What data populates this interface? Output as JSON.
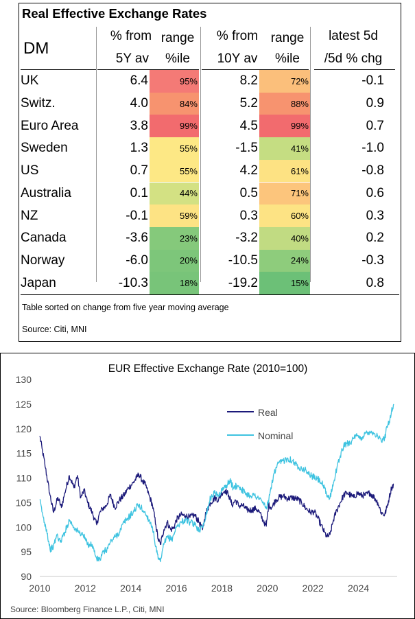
{
  "table": {
    "title": "Real Effective Exchange Rates",
    "dm_label": "DM",
    "headers": {
      "c5y_l1": "% from",
      "c5y_l2": "5Y av",
      "r5_l1": "range",
      "r5_l2": "%ile",
      "c10y_l1": "% from",
      "c10y_l2": "10Y av",
      "r10_l1": "range",
      "r10_l2": "%ile",
      "chg_l1": "latest 5d",
      "chg_l2": "/5d % chg"
    },
    "rows": [
      {
        "name": "UK",
        "from5y": "6.4",
        "range5": "95%",
        "c5": "#f47a76",
        "from10y": "8.2",
        "range10": "72%",
        "c10": "#fbbf7b",
        "chg": "-0.1"
      },
      {
        "name": "Switz.",
        "from5y": "4.0",
        "range5": "84%",
        "c5": "#f7936f",
        "from10y": "5.2",
        "range10": "88%",
        "c10": "#f7936f",
        "chg": "0.9"
      },
      {
        "name": "Euro Area",
        "from5y": "3.8",
        "range5": "99%",
        "c5": "#f26b6e",
        "from10y": "4.5",
        "range10": "99%",
        "c10": "#f26b6e",
        "chg": "0.7"
      },
      {
        "name": "Sweden",
        "from5y": "1.3",
        "range5": "55%",
        "c5": "#fde885",
        "from10y": "-1.5",
        "range10": "41%",
        "c10": "#c5dd82",
        "chg": "-1.0"
      },
      {
        "name": "US",
        "from5y": "0.7",
        "range5": "55%",
        "c5": "#fde885",
        "from10y": "4.2",
        "range10": "61%",
        "c10": "#fde283",
        "chg": "-0.8"
      },
      {
        "name": "Australia",
        "from5y": "0.1",
        "range5": "44%",
        "c5": "#d3e183",
        "from10y": "0.5",
        "range10": "71%",
        "c10": "#fcc57c",
        "chg": "0.6"
      },
      {
        "name": "NZ",
        "from5y": "-0.1",
        "range5": "59%",
        "c5": "#fde384",
        "from10y": "0.3",
        "range10": "60%",
        "c10": "#fde384",
        "chg": "0.3"
      },
      {
        "name": "Canada",
        "from5y": "-3.6",
        "range5": "23%",
        "c5": "#85c97b",
        "from10y": "-3.2",
        "range10": "40%",
        "c10": "#c1db82",
        "chg": "0.2"
      },
      {
        "name": "Norway",
        "from5y": "-6.0",
        "range5": "20%",
        "c5": "#7dc67a",
        "from10y": "-10.5",
        "range10": "24%",
        "c10": "#8ecc7c",
        "chg": "-0.3"
      },
      {
        "name": "Japan",
        "from5y": "-10.3",
        "range5": "18%",
        "c5": "#78c479",
        "from10y": "-19.2",
        "range10": "15%",
        "c10": "#6cc077",
        "chg": "0.8"
      }
    ],
    "note": "Table sorted on change from five year moving average",
    "source": "Source: Citi, MNI"
  },
  "chart_data": {
    "type": "line",
    "title": "EUR Effective Exchange Rate (2010=100)",
    "xlabel": "",
    "ylabel": "",
    "xlim": [
      2010,
      2025.7
    ],
    "ylim": [
      90,
      130
    ],
    "yticks": [
      90,
      95,
      100,
      105,
      110,
      115,
      120,
      125,
      130
    ],
    "xticks": [
      2010,
      2012,
      2014,
      2016,
      2018,
      2020,
      2022,
      2024
    ],
    "grid": false,
    "legend_position": "upper-center-right",
    "series": [
      {
        "name": "Real",
        "color": "#1c1a7a",
        "points": [
          [
            2010.0,
            118.5
          ],
          [
            2010.1,
            116.0
          ],
          [
            2010.25,
            112.0
          ],
          [
            2010.45,
            106.5
          ],
          [
            2010.6,
            103.0
          ],
          [
            2010.8,
            106.0
          ],
          [
            2010.95,
            104.0
          ],
          [
            2011.1,
            107.0
          ],
          [
            2011.3,
            110.5
          ],
          [
            2011.5,
            108.0
          ],
          [
            2011.65,
            110.5
          ],
          [
            2011.8,
            106.0
          ],
          [
            2011.95,
            107.5
          ],
          [
            2012.1,
            105.0
          ],
          [
            2012.3,
            103.0
          ],
          [
            2012.5,
            100.5
          ],
          [
            2012.6,
            102.5
          ],
          [
            2012.75,
            103.8
          ],
          [
            2012.9,
            104.2
          ],
          [
            2013.1,
            106.5
          ],
          [
            2013.3,
            104.0
          ],
          [
            2013.5,
            105.5
          ],
          [
            2013.7,
            106.5
          ],
          [
            2013.9,
            108.0
          ],
          [
            2014.1,
            109.0
          ],
          [
            2014.25,
            110.0
          ],
          [
            2014.35,
            110.8
          ],
          [
            2014.5,
            109.5
          ],
          [
            2014.65,
            108.5
          ],
          [
            2014.8,
            106.5
          ],
          [
            2014.95,
            104.5
          ],
          [
            2015.1,
            100.5
          ],
          [
            2015.2,
            97.5
          ],
          [
            2015.3,
            96.5
          ],
          [
            2015.45,
            99.5
          ],
          [
            2015.6,
            101.0
          ],
          [
            2015.75,
            99.5
          ],
          [
            2015.9,
            100.0
          ],
          [
            2016.0,
            101.5
          ],
          [
            2016.2,
            102.5
          ],
          [
            2016.4,
            102.3
          ],
          [
            2016.6,
            102.0
          ],
          [
            2016.8,
            102.5
          ],
          [
            2017.0,
            101.0
          ],
          [
            2017.15,
            99.5
          ],
          [
            2017.3,
            103.0
          ],
          [
            2017.5,
            105.0
          ],
          [
            2017.7,
            106.0
          ],
          [
            2017.85,
            105.5
          ],
          [
            2018.0,
            107.0
          ],
          [
            2018.15,
            107.5
          ],
          [
            2018.3,
            106.5
          ],
          [
            2018.45,
            104.5
          ],
          [
            2018.6,
            105.5
          ],
          [
            2018.75,
            104.3
          ],
          [
            2018.9,
            104.5
          ],
          [
            2019.1,
            103.5
          ],
          [
            2019.3,
            103.5
          ],
          [
            2019.5,
            103.8
          ],
          [
            2019.65,
            103.0
          ],
          [
            2019.8,
            101.5
          ],
          [
            2019.95,
            100.2
          ],
          [
            2020.05,
            104.5
          ],
          [
            2020.2,
            104.0
          ],
          [
            2020.35,
            105.5
          ],
          [
            2020.5,
            106.0
          ],
          [
            2020.7,
            106.3
          ],
          [
            2020.9,
            105.8
          ],
          [
            2021.1,
            106.0
          ],
          [
            2021.3,
            105.8
          ],
          [
            2021.5,
            105.0
          ],
          [
            2021.7,
            103.8
          ],
          [
            2021.9,
            103.0
          ],
          [
            2022.05,
            103.2
          ],
          [
            2022.2,
            102.0
          ],
          [
            2022.35,
            100.5
          ],
          [
            2022.5,
            99.0
          ],
          [
            2022.62,
            98.0
          ],
          [
            2022.75,
            98.5
          ],
          [
            2022.9,
            101.5
          ],
          [
            2023.05,
            103.5
          ],
          [
            2023.2,
            105.0
          ],
          [
            2023.35,
            106.5
          ],
          [
            2023.5,
            107.0
          ],
          [
            2023.65,
            106.5
          ],
          [
            2023.8,
            106.0
          ],
          [
            2023.95,
            107.0
          ],
          [
            2024.1,
            106.5
          ],
          [
            2024.3,
            106.5
          ],
          [
            2024.5,
            107.0
          ],
          [
            2024.7,
            106.0
          ],
          [
            2024.85,
            105.0
          ],
          [
            2025.0,
            103.0
          ],
          [
            2025.15,
            102.5
          ],
          [
            2025.25,
            104.0
          ],
          [
            2025.35,
            106.0
          ],
          [
            2025.45,
            108.0
          ],
          [
            2025.55,
            108.8
          ]
        ]
      },
      {
        "name": "Nominal",
        "color": "#3ec3e0",
        "points": [
          [
            2010.0,
            105.5
          ],
          [
            2010.15,
            102.0
          ],
          [
            2010.3,
            99.5
          ],
          [
            2010.45,
            95.5
          ],
          [
            2010.6,
            96.0
          ],
          [
            2010.75,
            98.5
          ],
          [
            2010.9,
            97.0
          ],
          [
            2011.1,
            99.0
          ],
          [
            2011.3,
            101.5
          ],
          [
            2011.5,
            100.0
          ],
          [
            2011.7,
            99.0
          ],
          [
            2011.9,
            98.5
          ],
          [
            2012.1,
            96.5
          ],
          [
            2012.3,
            96.5
          ],
          [
            2012.5,
            93.5
          ],
          [
            2012.65,
            93.5
          ],
          [
            2012.8,
            95.0
          ],
          [
            2012.95,
            95.5
          ],
          [
            2013.1,
            97.0
          ],
          [
            2013.3,
            98.0
          ],
          [
            2013.5,
            99.0
          ],
          [
            2013.7,
            101.0
          ],
          [
            2013.9,
            102.0
          ],
          [
            2014.1,
            103.0
          ],
          [
            2014.3,
            104.5
          ],
          [
            2014.45,
            104.0
          ],
          [
            2014.6,
            103.0
          ],
          [
            2014.8,
            101.5
          ],
          [
            2014.95,
            100.0
          ],
          [
            2015.1,
            96.0
          ],
          [
            2015.2,
            93.5
          ],
          [
            2015.3,
            93.0
          ],
          [
            2015.45,
            96.5
          ],
          [
            2015.6,
            98.0
          ],
          [
            2015.8,
            97.5
          ],
          [
            2016.0,
            100.0
          ],
          [
            2016.2,
            101.0
          ],
          [
            2016.4,
            101.5
          ],
          [
            2016.6,
            101.0
          ],
          [
            2016.8,
            100.5
          ],
          [
            2017.0,
            99.5
          ],
          [
            2017.15,
            100.0
          ],
          [
            2017.3,
            102.5
          ],
          [
            2017.5,
            106.0
          ],
          [
            2017.7,
            107.0
          ],
          [
            2017.85,
            106.5
          ],
          [
            2018.0,
            107.5
          ],
          [
            2018.2,
            108.5
          ],
          [
            2018.35,
            109.5
          ],
          [
            2018.5,
            108.0
          ],
          [
            2018.7,
            108.5
          ],
          [
            2018.85,
            107.8
          ],
          [
            2019.0,
            107.0
          ],
          [
            2019.2,
            106.5
          ],
          [
            2019.4,
            106.5
          ],
          [
            2019.6,
            106.0
          ],
          [
            2019.8,
            105.0
          ],
          [
            2019.95,
            104.0
          ],
          [
            2020.05,
            105.0
          ],
          [
            2020.15,
            108.0
          ],
          [
            2020.3,
            111.0
          ],
          [
            2020.5,
            113.0
          ],
          [
            2020.7,
            113.5
          ],
          [
            2020.9,
            114.0
          ],
          [
            2021.1,
            113.5
          ],
          [
            2021.3,
            112.5
          ],
          [
            2021.5,
            112.0
          ],
          [
            2021.7,
            111.5
          ],
          [
            2021.9,
            110.5
          ],
          [
            2022.1,
            110.0
          ],
          [
            2022.3,
            109.5
          ],
          [
            2022.45,
            108.5
          ],
          [
            2022.6,
            106.5
          ],
          [
            2022.75,
            106.0
          ],
          [
            2022.9,
            109.0
          ],
          [
            2023.05,
            112.0
          ],
          [
            2023.2,
            114.5
          ],
          [
            2023.35,
            116.5
          ],
          [
            2023.5,
            117.0
          ],
          [
            2023.7,
            117.5
          ],
          [
            2023.9,
            118.5
          ],
          [
            2024.1,
            118.0
          ],
          [
            2024.3,
            119.0
          ],
          [
            2024.5,
            119.5
          ],
          [
            2024.7,
            119.0
          ],
          [
            2024.85,
            118.5
          ],
          [
            2025.0,
            117.5
          ],
          [
            2025.15,
            118.0
          ],
          [
            2025.25,
            120.5
          ],
          [
            2025.35,
            121.5
          ],
          [
            2025.45,
            123.5
          ],
          [
            2025.55,
            125.0
          ]
        ]
      }
    ],
    "source": "Source: Bloomberg Finance L.P., Citi, MNI"
  }
}
